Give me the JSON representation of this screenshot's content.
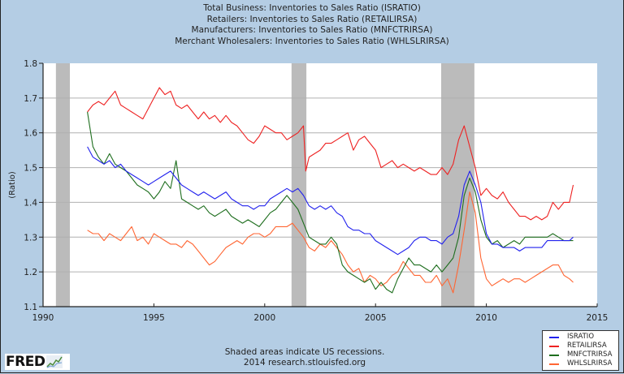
{
  "titles": [
    "Total Business: Inventories to Sales Ratio (ISRATIO)",
    "Retailers: Inventories to Sales Ratio (RETAILIRSA)",
    "Manufacturers: Inventories to Sales Ratio (MNFCTRIRSA)",
    "Merchant Wholesalers: Inventories to Sales Ratio (WHLSLRIRSA)"
  ],
  "footer": {
    "note": "Shaded areas indicate US recessions.",
    "source": "2014 research.stlouisfed.org",
    "logo_text": "FRED"
  },
  "icons": {
    "logo": "fred-chart-icon"
  },
  "chart_data": {
    "type": "line",
    "ylabel": "(Ratio)",
    "xlabel": "",
    "xlim": [
      1990,
      2015
    ],
    "ylim": [
      1.1,
      1.8
    ],
    "xticks": [
      "1990",
      "1995",
      "2000",
      "2005",
      "2010",
      "2015"
    ],
    "xtick_values": [
      1990,
      1995,
      2000,
      2005,
      2010,
      2015
    ],
    "yticks": [
      "1.1",
      "1.2",
      "1.3",
      "1.4",
      "1.5",
      "1.6",
      "1.7",
      "1.8"
    ],
    "ytick_values": [
      1.1,
      1.2,
      1.3,
      1.4,
      1.5,
      1.6,
      1.7,
      1.8
    ],
    "grid": true,
    "legend_position": "bottom-right",
    "recessions": [
      [
        1990.58,
        1991.21
      ],
      [
        2001.21,
        2001.88
      ],
      [
        2007.96,
        2009.46
      ]
    ],
    "recession_color": "#bbbbbb",
    "series": [
      {
        "name": "ISRATIO",
        "color": "#2222ee",
        "x": [
          1992.0,
          1992.25,
          1992.5,
          1992.75,
          1993.0,
          1993.25,
          1993.5,
          1993.75,
          1994.0,
          1994.25,
          1994.5,
          1994.75,
          1995.0,
          1995.25,
          1995.5,
          1995.75,
          1996.0,
          1996.25,
          1996.5,
          1996.75,
          1997.0,
          1997.25,
          1997.5,
          1997.75,
          1998.0,
          1998.25,
          1998.5,
          1998.75,
          1999.0,
          1999.25,
          1999.5,
          1999.75,
          2000.0,
          2000.25,
          2000.5,
          2000.75,
          2001.0,
          2001.25,
          2001.5,
          2001.75,
          2002.0,
          2002.25,
          2002.5,
          2002.75,
          2003.0,
          2003.25,
          2003.5,
          2003.75,
          2004.0,
          2004.25,
          2004.5,
          2004.75,
          2005.0,
          2005.25,
          2005.5,
          2005.75,
          2006.0,
          2006.25,
          2006.5,
          2006.75,
          2007.0,
          2007.25,
          2007.5,
          2007.75,
          2008.0,
          2008.25,
          2008.5,
          2008.75,
          2009.0,
          2009.25,
          2009.5,
          2009.75,
          2010.0,
          2010.25,
          2010.5,
          2010.75,
          2011.0,
          2011.25,
          2011.5,
          2011.75,
          2012.0,
          2012.25,
          2012.5,
          2012.75,
          2013.0,
          2013.25,
          2013.5,
          2013.75,
          2013.92
        ],
        "y": [
          1.56,
          1.53,
          1.52,
          1.51,
          1.52,
          1.5,
          1.51,
          1.49,
          1.48,
          1.47,
          1.46,
          1.45,
          1.46,
          1.47,
          1.48,
          1.49,
          1.47,
          1.45,
          1.44,
          1.43,
          1.42,
          1.43,
          1.42,
          1.41,
          1.42,
          1.43,
          1.41,
          1.4,
          1.39,
          1.39,
          1.38,
          1.39,
          1.39,
          1.41,
          1.42,
          1.43,
          1.44,
          1.43,
          1.44,
          1.42,
          1.39,
          1.38,
          1.39,
          1.38,
          1.39,
          1.37,
          1.36,
          1.33,
          1.32,
          1.32,
          1.31,
          1.31,
          1.29,
          1.28,
          1.27,
          1.26,
          1.25,
          1.26,
          1.27,
          1.29,
          1.3,
          1.3,
          1.29,
          1.29,
          1.28,
          1.3,
          1.31,
          1.36,
          1.45,
          1.49,
          1.45,
          1.4,
          1.31,
          1.28,
          1.28,
          1.27,
          1.27,
          1.27,
          1.26,
          1.27,
          1.27,
          1.27,
          1.27,
          1.29,
          1.29,
          1.29,
          1.29,
          1.29,
          1.3
        ]
      },
      {
        "name": "RETAILIRSA",
        "color": "#ee2222",
        "x": [
          1992.0,
          1992.25,
          1992.5,
          1992.75,
          1993.0,
          1993.25,
          1993.5,
          1993.75,
          1994.0,
          1994.25,
          1994.5,
          1994.75,
          1995.0,
          1995.25,
          1995.5,
          1995.75,
          1996.0,
          1996.25,
          1996.5,
          1996.75,
          1997.0,
          1997.25,
          1997.5,
          1997.75,
          1998.0,
          1998.25,
          1998.5,
          1998.75,
          1999.0,
          1999.25,
          1999.5,
          1999.75,
          2000.0,
          2000.25,
          2000.5,
          2000.75,
          2001.0,
          2001.25,
          2001.5,
          2001.75,
          2001.85,
          2002.0,
          2002.25,
          2002.5,
          2002.75,
          2003.0,
          2003.25,
          2003.5,
          2003.75,
          2004.0,
          2004.25,
          2004.5,
          2004.75,
          2005.0,
          2005.25,
          2005.5,
          2005.75,
          2006.0,
          2006.25,
          2006.5,
          2006.75,
          2007.0,
          2007.25,
          2007.5,
          2007.75,
          2008.0,
          2008.25,
          2008.5,
          2008.75,
          2009.0,
          2009.25,
          2009.5,
          2009.75,
          2010.0,
          2010.25,
          2010.5,
          2010.75,
          2011.0,
          2011.25,
          2011.5,
          2011.75,
          2012.0,
          2012.25,
          2012.5,
          2012.75,
          2013.0,
          2013.25,
          2013.5,
          2013.75,
          2013.92
        ],
        "y": [
          1.66,
          1.68,
          1.69,
          1.68,
          1.7,
          1.72,
          1.68,
          1.67,
          1.66,
          1.65,
          1.64,
          1.67,
          1.7,
          1.73,
          1.71,
          1.72,
          1.68,
          1.67,
          1.68,
          1.66,
          1.64,
          1.66,
          1.64,
          1.65,
          1.63,
          1.65,
          1.63,
          1.62,
          1.6,
          1.58,
          1.57,
          1.59,
          1.62,
          1.61,
          1.6,
          1.6,
          1.58,
          1.59,
          1.6,
          1.62,
          1.49,
          1.53,
          1.54,
          1.55,
          1.57,
          1.57,
          1.58,
          1.59,
          1.6,
          1.55,
          1.58,
          1.59,
          1.57,
          1.55,
          1.5,
          1.51,
          1.52,
          1.5,
          1.51,
          1.5,
          1.49,
          1.5,
          1.49,
          1.48,
          1.48,
          1.5,
          1.48,
          1.51,
          1.58,
          1.62,
          1.56,
          1.5,
          1.42,
          1.44,
          1.42,
          1.41,
          1.43,
          1.4,
          1.38,
          1.36,
          1.36,
          1.35,
          1.36,
          1.35,
          1.36,
          1.4,
          1.38,
          1.4,
          1.4,
          1.45
        ]
      },
      {
        "name": "MNFCTRIRSA",
        "color": "#1e6e1e",
        "x": [
          1992.0,
          1992.25,
          1992.5,
          1992.75,
          1993.0,
          1993.25,
          1993.5,
          1993.75,
          1994.0,
          1994.25,
          1994.5,
          1994.75,
          1995.0,
          1995.25,
          1995.5,
          1995.75,
          1996.0,
          1996.25,
          1996.5,
          1996.75,
          1997.0,
          1997.25,
          1997.5,
          1997.75,
          1998.0,
          1998.25,
          1998.5,
          1998.75,
          1999.0,
          1999.25,
          1999.5,
          1999.75,
          2000.0,
          2000.25,
          2000.5,
          2000.75,
          2001.0,
          2001.25,
          2001.5,
          2001.75,
          2002.0,
          2002.25,
          2002.5,
          2002.75,
          2003.0,
          2003.25,
          2003.5,
          2003.75,
          2004.0,
          2004.25,
          2004.5,
          2004.75,
          2005.0,
          2005.25,
          2005.5,
          2005.75,
          2006.0,
          2006.25,
          2006.5,
          2006.75,
          2007.0,
          2007.25,
          2007.5,
          2007.75,
          2008.0,
          2008.25,
          2008.5,
          2008.75,
          2009.0,
          2009.25,
          2009.5,
          2009.75,
          2010.0,
          2010.25,
          2010.5,
          2010.75,
          2011.0,
          2011.25,
          2011.5,
          2011.75,
          2012.0,
          2012.25,
          2012.5,
          2012.75,
          2013.0,
          2013.25,
          2013.5,
          2013.75,
          2013.92
        ],
        "y": [
          1.66,
          1.56,
          1.53,
          1.51,
          1.54,
          1.51,
          1.5,
          1.49,
          1.47,
          1.45,
          1.44,
          1.43,
          1.41,
          1.43,
          1.46,
          1.44,
          1.52,
          1.41,
          1.4,
          1.39,
          1.38,
          1.39,
          1.37,
          1.36,
          1.37,
          1.38,
          1.36,
          1.35,
          1.34,
          1.35,
          1.34,
          1.33,
          1.35,
          1.37,
          1.38,
          1.4,
          1.42,
          1.4,
          1.38,
          1.34,
          1.3,
          1.29,
          1.28,
          1.28,
          1.3,
          1.28,
          1.22,
          1.2,
          1.19,
          1.18,
          1.17,
          1.18,
          1.15,
          1.17,
          1.15,
          1.14,
          1.18,
          1.21,
          1.24,
          1.22,
          1.22,
          1.21,
          1.2,
          1.22,
          1.2,
          1.22,
          1.24,
          1.3,
          1.42,
          1.47,
          1.43,
          1.35,
          1.3,
          1.28,
          1.29,
          1.27,
          1.28,
          1.29,
          1.28,
          1.3,
          1.3,
          1.3,
          1.3,
          1.3,
          1.31,
          1.3,
          1.29,
          1.29,
          1.29
        ]
      },
      {
        "name": "WHLSLRIRSA",
        "color": "#ff6633",
        "x": [
          1992.0,
          1992.25,
          1992.5,
          1992.75,
          1993.0,
          1993.25,
          1993.5,
          1993.75,
          1994.0,
          1994.25,
          1994.5,
          1994.75,
          1995.0,
          1995.25,
          1995.5,
          1995.75,
          1996.0,
          1996.25,
          1996.5,
          1996.75,
          1997.0,
          1997.25,
          1997.5,
          1997.75,
          1998.0,
          1998.25,
          1998.5,
          1998.75,
          1999.0,
          1999.25,
          1999.5,
          1999.75,
          2000.0,
          2000.25,
          2000.5,
          2000.75,
          2001.0,
          2001.25,
          2001.5,
          2001.75,
          2002.0,
          2002.25,
          2002.5,
          2002.75,
          2003.0,
          2003.25,
          2003.5,
          2003.75,
          2004.0,
          2004.25,
          2004.5,
          2004.75,
          2005.0,
          2005.25,
          2005.5,
          2005.75,
          2006.0,
          2006.25,
          2006.5,
          2006.75,
          2007.0,
          2007.25,
          2007.5,
          2007.75,
          2008.0,
          2008.25,
          2008.5,
          2008.75,
          2009.0,
          2009.25,
          2009.5,
          2009.75,
          2010.0,
          2010.25,
          2010.5,
          2010.75,
          2011.0,
          2011.25,
          2011.5,
          2011.75,
          2012.0,
          2012.25,
          2012.5,
          2012.75,
          2013.0,
          2013.25,
          2013.5,
          2013.75,
          2013.92
        ],
        "y": [
          1.32,
          1.31,
          1.31,
          1.29,
          1.31,
          1.3,
          1.29,
          1.31,
          1.33,
          1.29,
          1.3,
          1.28,
          1.31,
          1.3,
          1.29,
          1.28,
          1.28,
          1.27,
          1.29,
          1.28,
          1.26,
          1.24,
          1.22,
          1.23,
          1.25,
          1.27,
          1.28,
          1.29,
          1.28,
          1.3,
          1.31,
          1.31,
          1.3,
          1.31,
          1.33,
          1.33,
          1.33,
          1.34,
          1.32,
          1.3,
          1.27,
          1.26,
          1.28,
          1.27,
          1.29,
          1.27,
          1.25,
          1.22,
          1.2,
          1.21,
          1.17,
          1.19,
          1.18,
          1.16,
          1.17,
          1.19,
          1.2,
          1.23,
          1.21,
          1.19,
          1.19,
          1.17,
          1.17,
          1.19,
          1.16,
          1.18,
          1.14,
          1.22,
          1.32,
          1.43,
          1.37,
          1.24,
          1.18,
          1.16,
          1.17,
          1.18,
          1.17,
          1.18,
          1.18,
          1.17,
          1.18,
          1.19,
          1.2,
          1.21,
          1.22,
          1.22,
          1.19,
          1.18,
          1.17
        ]
      }
    ]
  }
}
